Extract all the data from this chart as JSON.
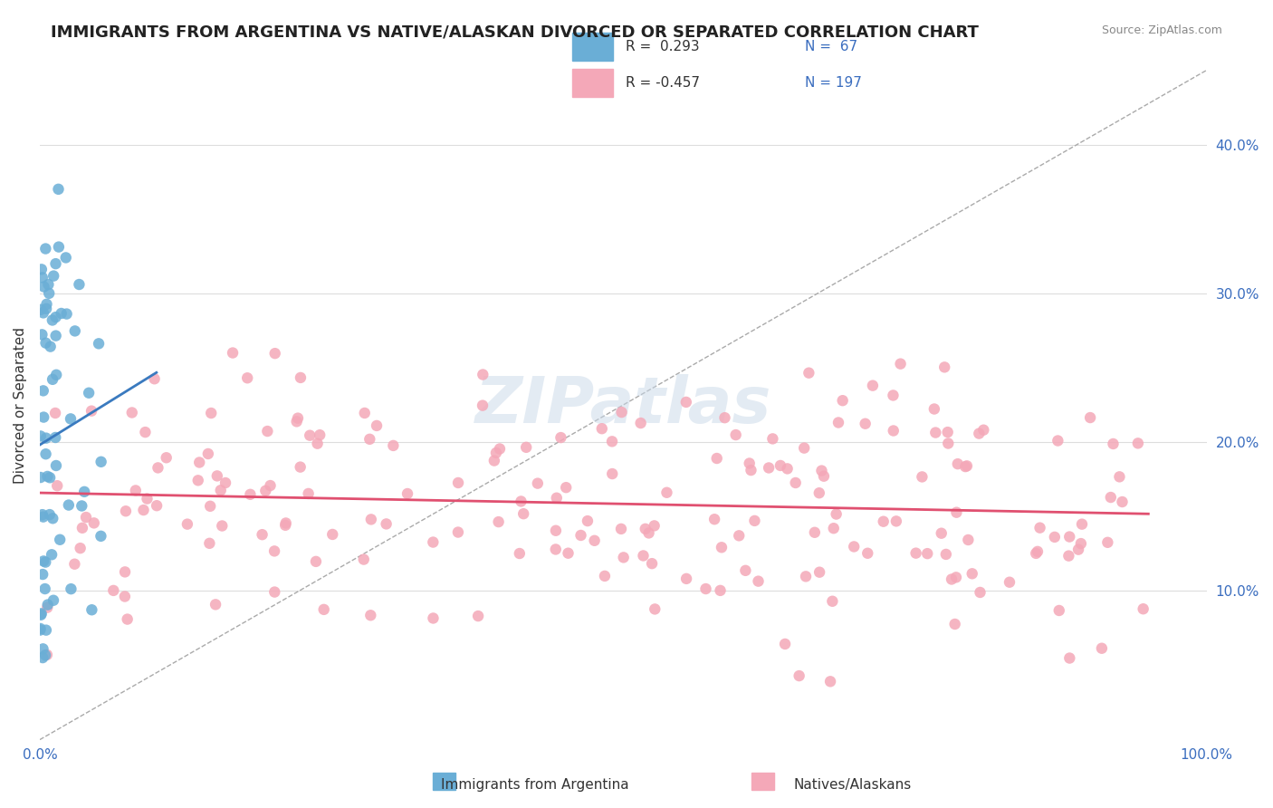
{
  "title": "IMMIGRANTS FROM ARGENTINA VS NATIVE/ALASKAN DIVORCED OR SEPARATED CORRELATION CHART",
  "source_text": "Source: ZipAtlas.com",
  "xlabel": "",
  "ylabel": "Divorced or Separated",
  "legend_label_1": "Immigrants from Argentina",
  "legend_label_2": "Natives/Alaskans",
  "R1": 0.293,
  "N1": 67,
  "R2": -0.457,
  "N2": 197,
  "color_blue": "#6aaed6",
  "color_pink": "#f4a8b8",
  "color_blue_dark": "#3a7abf",
  "color_pink_dark": "#e05070",
  "xlim": [
    0.0,
    1.0
  ],
  "ylim": [
    0.0,
    0.45
  ],
  "x_ticks": [
    0.0,
    1.0
  ],
  "x_tick_labels": [
    "0.0%",
    "100.0%"
  ],
  "y_ticks_right": [
    0.1,
    0.2,
    0.3,
    0.4
  ],
  "y_tick_labels_right": [
    "10.0%",
    "20.0%",
    "30.0%",
    "40.0%"
  ],
  "watermark": "ZIPatlas",
  "watermark_color": "#c8d8e8",
  "background_color": "#ffffff",
  "grid_color": "#dddddd",
  "seed_blue": 42,
  "seed_pink": 99
}
